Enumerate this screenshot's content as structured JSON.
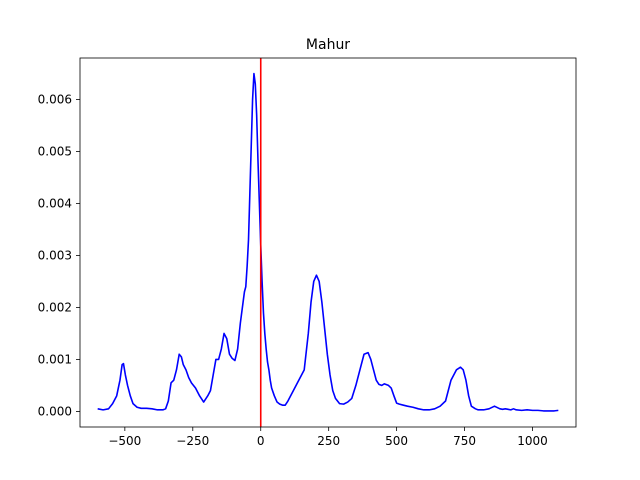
{
  "chart_data": {
    "type": "line",
    "title": "Mahur",
    "xlabel": "",
    "ylabel": "",
    "xlim": [
      -665,
      1160
    ],
    "ylim": [
      -0.0003,
      0.0068
    ],
    "x_ticks": [
      -500,
      -250,
      0,
      250,
      500,
      750,
      1000
    ],
    "y_ticks": [
      0.0,
      0.001,
      0.002,
      0.003,
      0.004,
      0.005,
      0.006
    ],
    "x_tick_labels": [
      "−500",
      "−250",
      "0",
      "250",
      "500",
      "750",
      "1000"
    ],
    "y_tick_labels": [
      "0.000",
      "0.001",
      "0.002",
      "0.003",
      "0.004",
      "0.005",
      "0.006"
    ],
    "grid": false,
    "colors": {
      "series": "#0000ff",
      "reference_line": "#ff0000",
      "axes": "#000000"
    },
    "reference_line": {
      "x": 0
    },
    "series": [
      {
        "x": [
          -600,
          -580,
          -560,
          -545,
          -530,
          -518,
          -510,
          -505,
          -498,
          -490,
          -480,
          -470,
          -455,
          -440,
          -420,
          -400,
          -380,
          -360,
          -350,
          -340,
          -330,
          -320,
          -310,
          -300,
          -292,
          -285,
          -275,
          -265,
          -255,
          -240,
          -225,
          -210,
          -195,
          -185,
          -175,
          -165,
          -155,
          -145,
          -135,
          -125,
          -115,
          -105,
          -95,
          -85,
          -75,
          -65,
          -60,
          -55,
          -50,
          -45,
          -40,
          -35,
          -30,
          -25,
          -20,
          -15,
          -10,
          -5,
          0,
          5,
          10,
          15,
          20,
          25,
          30,
          35,
          40,
          50,
          60,
          70,
          80,
          90,
          100,
          120,
          140,
          160,
          175,
          185,
          195,
          205,
          215,
          225,
          235,
          245,
          255,
          265,
          275,
          290,
          305,
          320,
          335,
          350,
          365,
          380,
          395,
          405,
          415,
          425,
          435,
          445,
          455,
          470,
          480,
          490,
          500,
          510,
          525,
          540,
          560,
          580,
          600,
          620,
          640,
          660,
          680,
          700,
          720,
          735,
          745,
          755,
          765,
          775,
          790,
          800,
          820,
          840,
          860,
          880,
          890,
          900,
          910,
          920,
          930,
          940,
          960,
          980,
          1000,
          1020,
          1040,
          1060,
          1080,
          1095
        ],
        "y": [
          5e-05,
          3e-05,
          5e-05,
          0.00015,
          0.0003,
          0.0006,
          0.0009,
          0.00092,
          0.0007,
          0.0005,
          0.0003,
          0.00015,
          8e-05,
          6e-05,
          6e-05,
          5e-05,
          3e-05,
          3e-05,
          5e-05,
          0.0002,
          0.00055,
          0.0006,
          0.0008,
          0.0011,
          0.00105,
          0.0009,
          0.0008,
          0.00065,
          0.00055,
          0.00045,
          0.0003,
          0.00018,
          0.0003,
          0.0004,
          0.0007,
          0.001,
          0.001,
          0.0012,
          0.0015,
          0.0014,
          0.0011,
          0.00102,
          0.00098,
          0.0012,
          0.0017,
          0.0021,
          0.0023,
          0.0024,
          0.0028,
          0.0033,
          0.0042,
          0.0051,
          0.006,
          0.0065,
          0.0063,
          0.0057,
          0.0048,
          0.004,
          0.0032,
          0.0025,
          0.0019,
          0.0015,
          0.0012,
          0.00095,
          0.0008,
          0.0006,
          0.00045,
          0.0003,
          0.00018,
          0.00014,
          0.00012,
          0.00012,
          0.0002,
          0.0004,
          0.0006,
          0.0008,
          0.0015,
          0.0021,
          0.0025,
          0.00262,
          0.0025,
          0.0021,
          0.0016,
          0.0011,
          0.0007,
          0.0004,
          0.00025,
          0.00015,
          0.00014,
          0.00018,
          0.00025,
          0.0005,
          0.0008,
          0.0011,
          0.00113,
          0.001,
          0.0008,
          0.0006,
          0.00052,
          0.0005,
          0.00053,
          0.0005,
          0.00045,
          0.0003,
          0.00016,
          0.00014,
          0.00012,
          0.0001,
          8e-05,
          5e-05,
          3e-05,
          3e-05,
          5e-05,
          0.0001,
          0.0002,
          0.0006,
          0.0008,
          0.00085,
          0.0008,
          0.0006,
          0.0003,
          0.0001,
          5e-05,
          3e-05,
          3e-05,
          5e-05,
          0.0001,
          5e-05,
          4e-05,
          5e-05,
          4e-05,
          3e-05,
          5e-05,
          3e-05,
          2e-05,
          3e-05,
          2e-05,
          2e-05,
          1e-05,
          1e-05,
          1e-05,
          2e-05
        ]
      }
    ]
  }
}
